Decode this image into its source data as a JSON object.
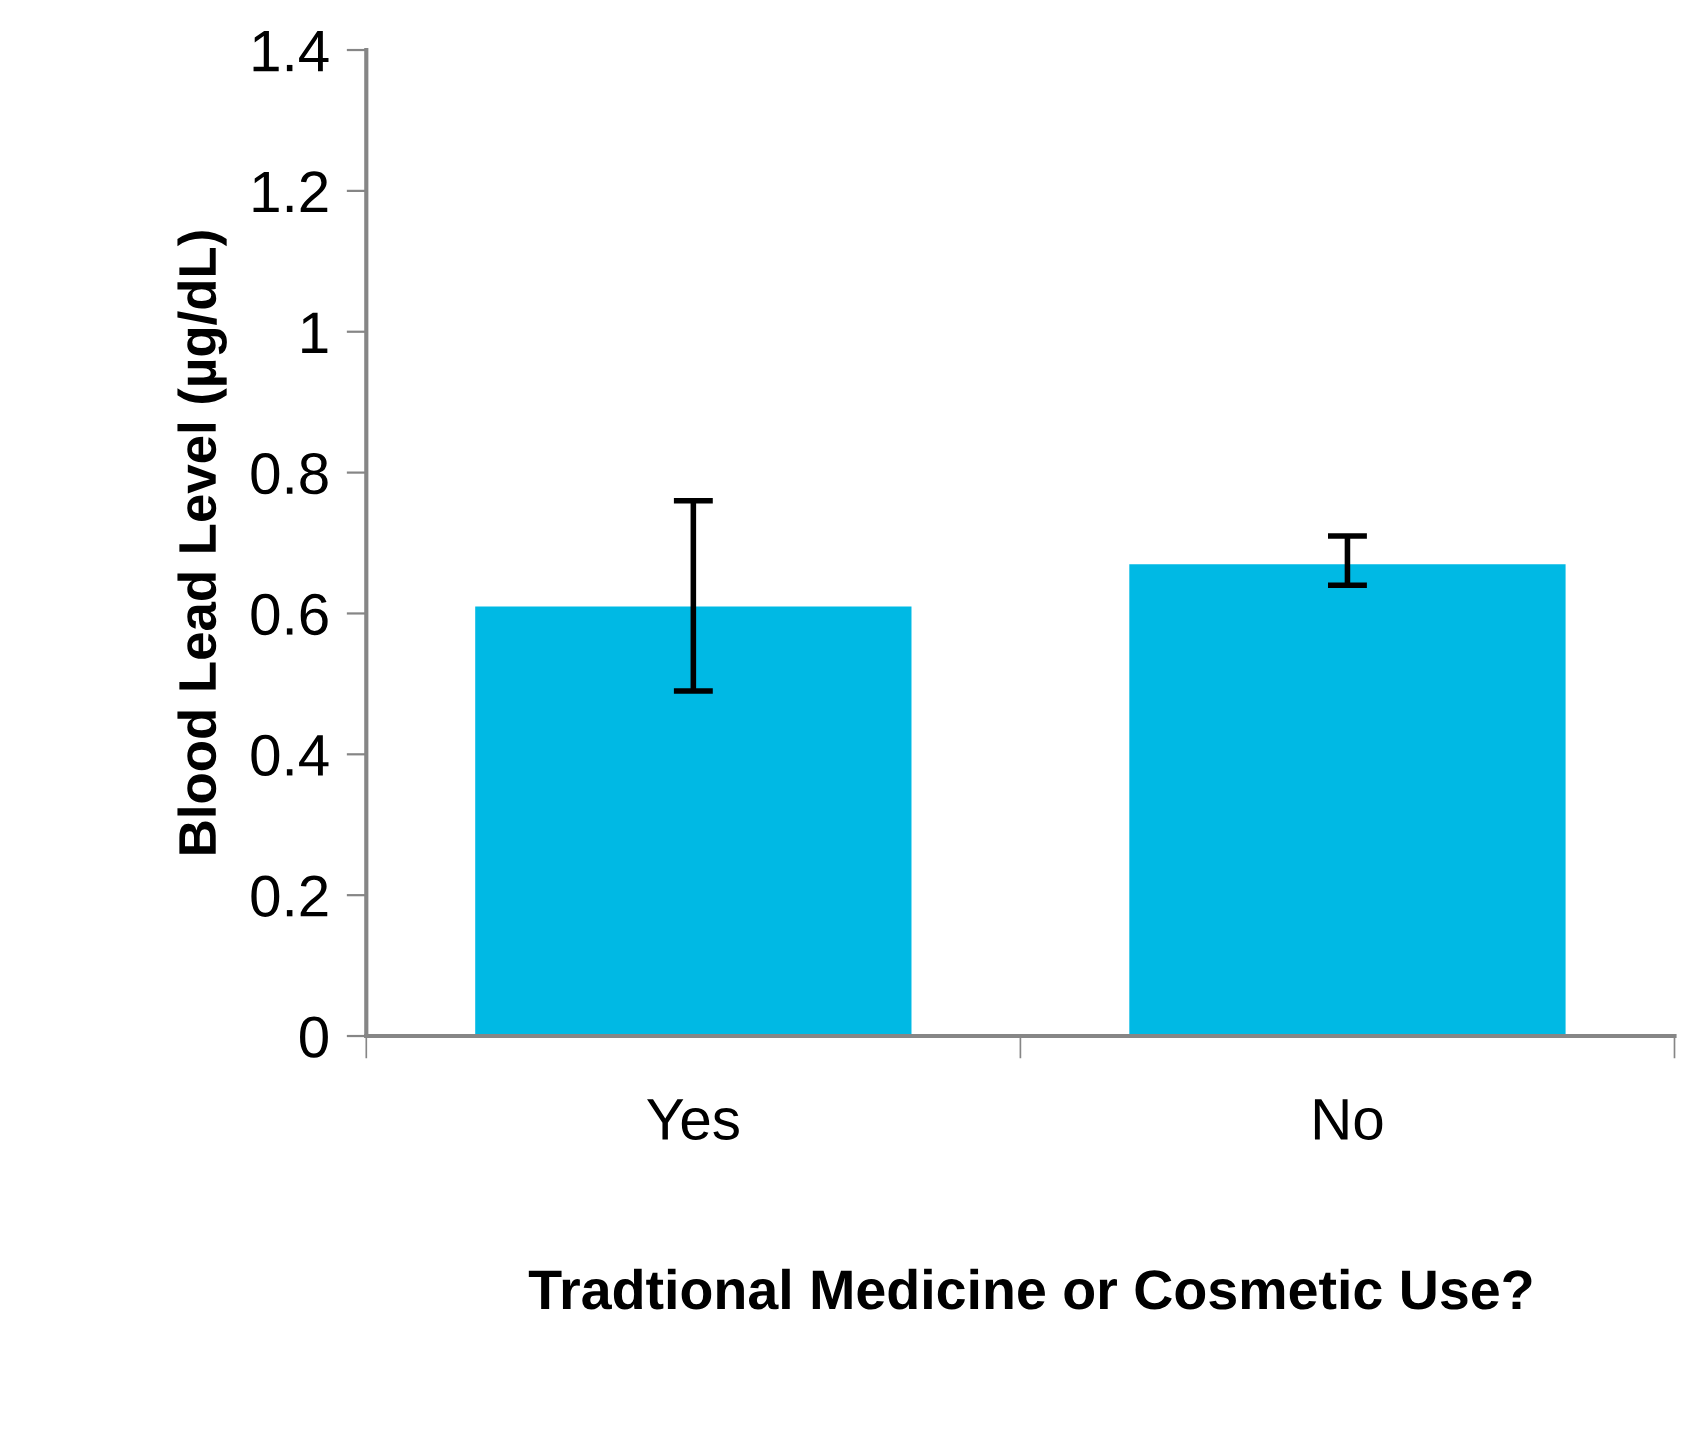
{
  "chart_data": {
    "type": "bar",
    "xlabel": "Tradtional Medicine or Cosmetic Use?",
    "ylabel": "Blood Lead Level (µg/dL)",
    "categories": [
      "Yes",
      "No"
    ],
    "values": [
      0.61,
      0.67
    ],
    "errors": [
      [
        0.49,
        0.76
      ],
      [
        0.64,
        0.71
      ]
    ],
    "color": "#00b9e4",
    "ylim": [
      0,
      1.4
    ],
    "yticks": [
      0,
      0.2,
      0.4,
      0.6,
      0.8,
      1,
      1.2,
      1.4
    ],
    "grid": false,
    "legend": false
  }
}
